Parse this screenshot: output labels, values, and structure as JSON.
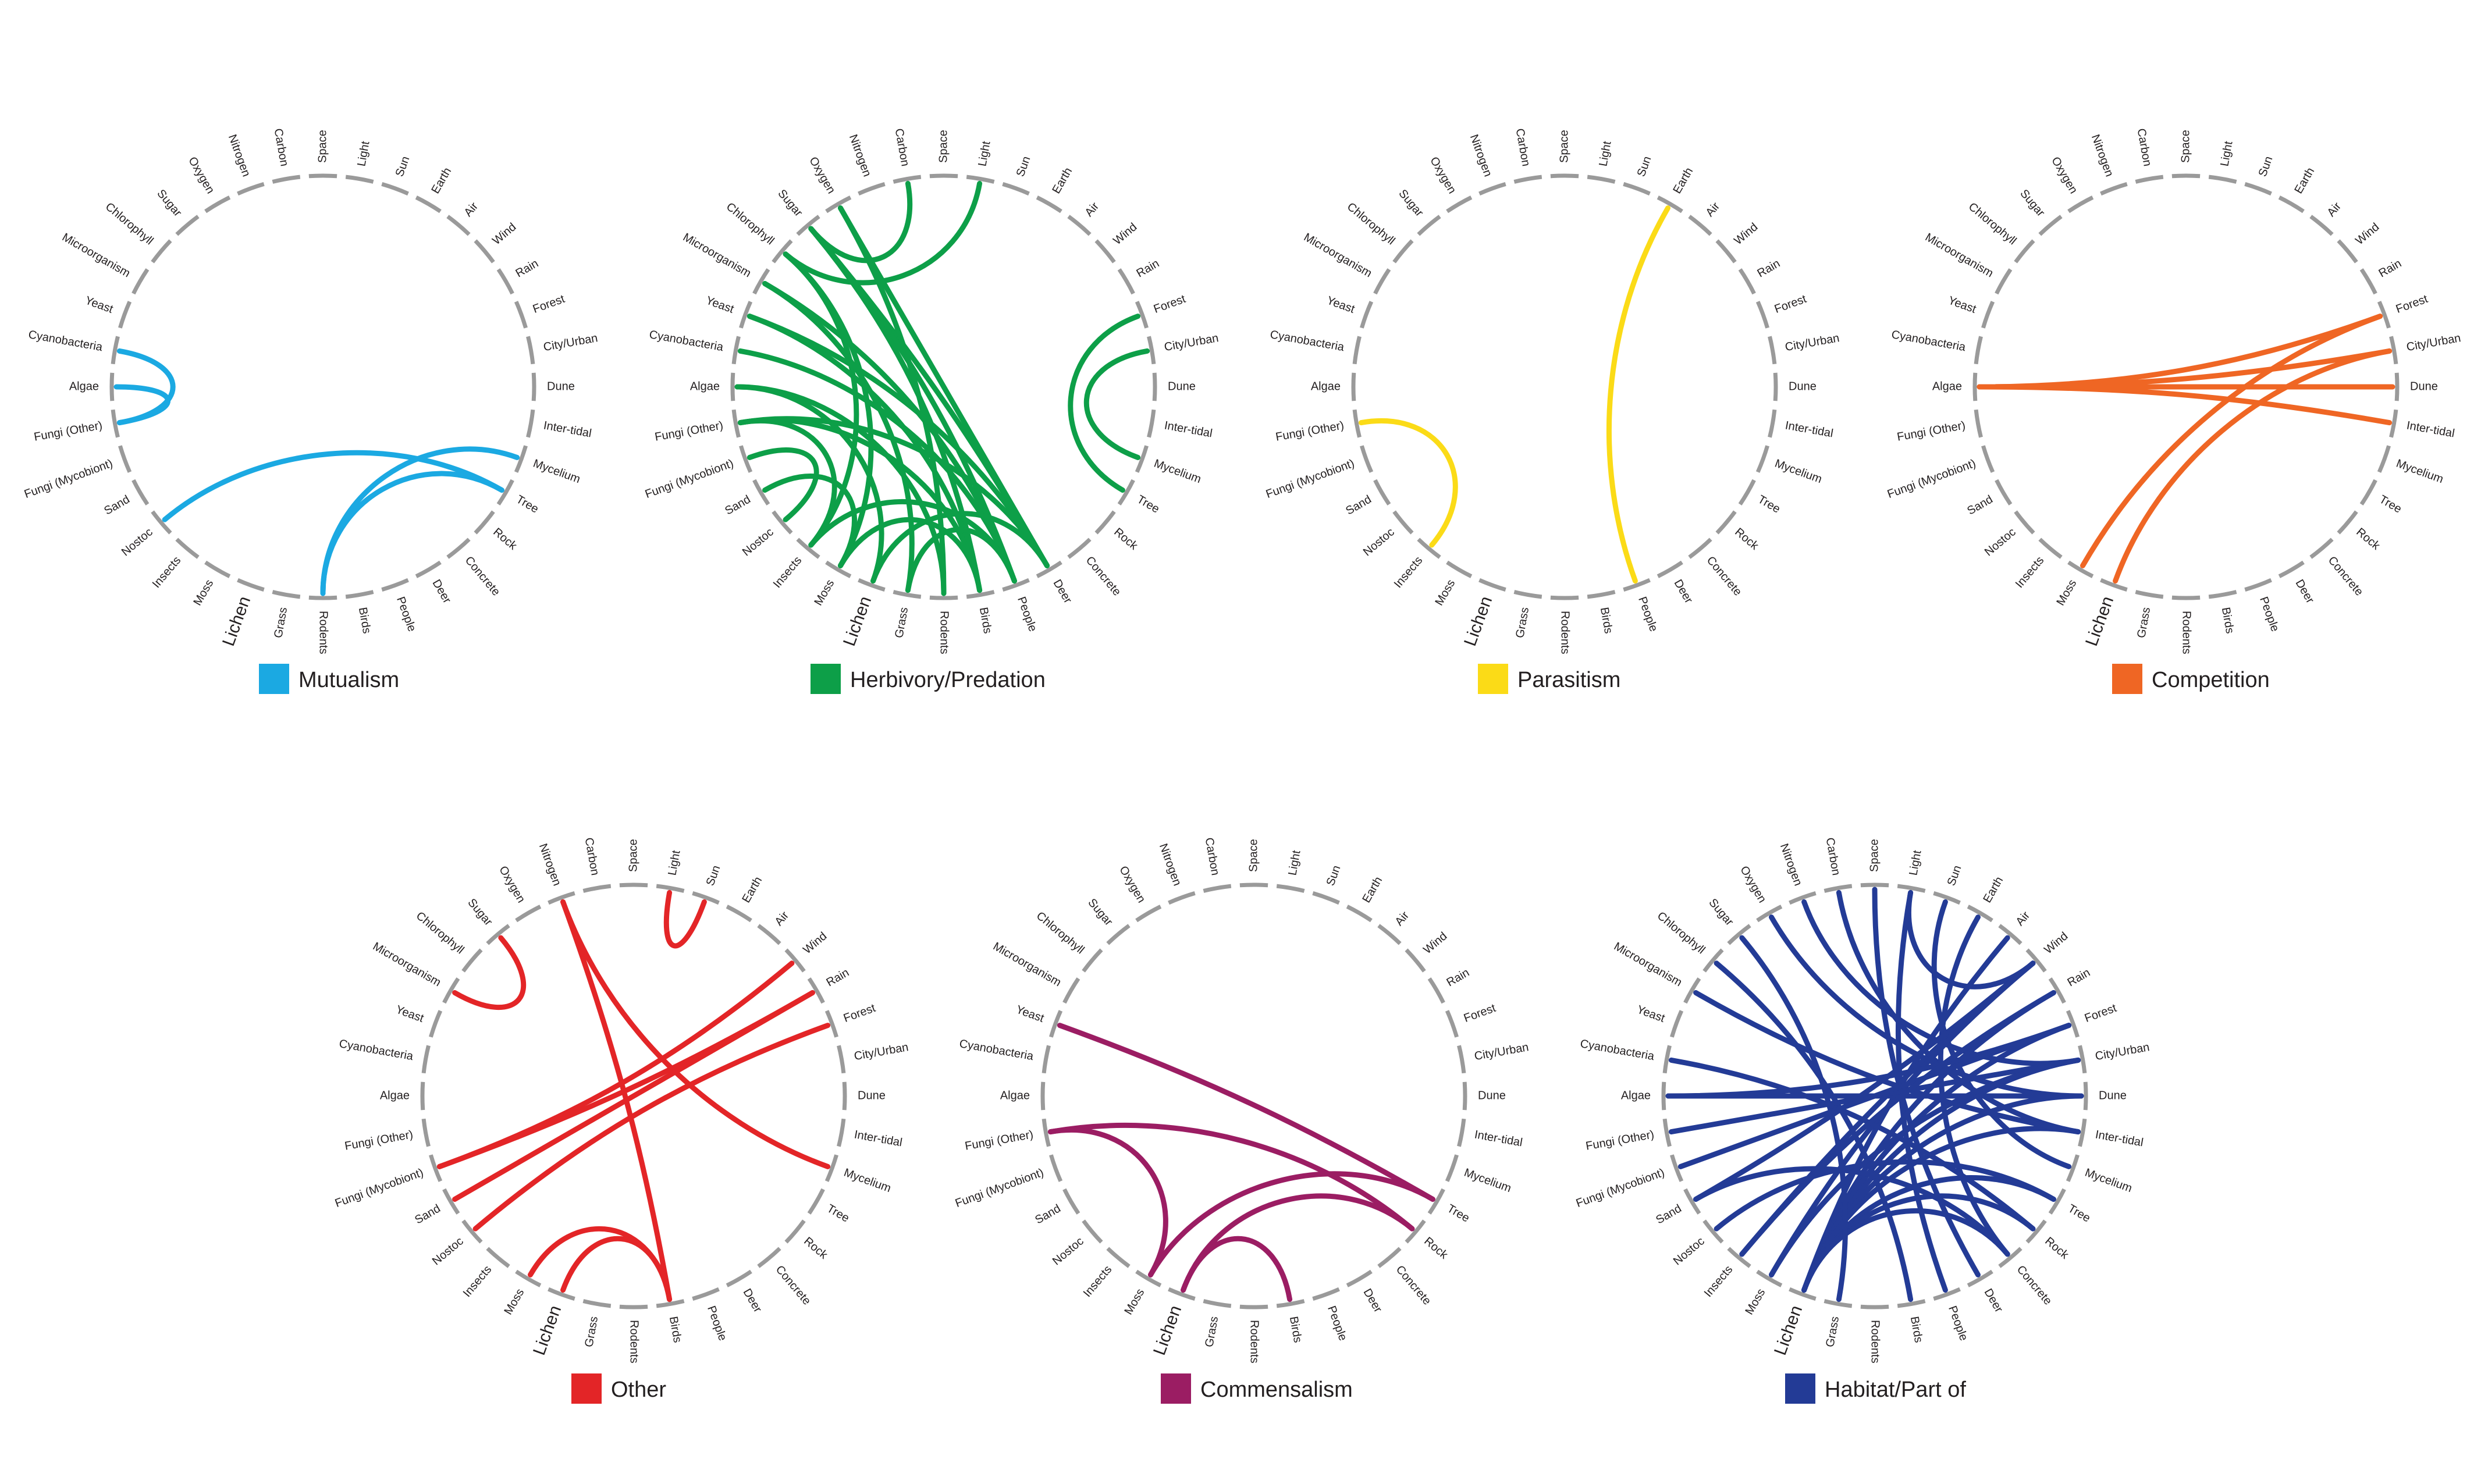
{
  "nodes": [
    "Space",
    "Light",
    "Sun",
    "Earth",
    "Air",
    "Wind",
    "Rain",
    "Forest",
    "City/Urban",
    "Dune",
    "Inter-tidal",
    "Mycelium",
    "Tree",
    "Rock",
    "Concrete",
    "Deer",
    "People",
    "Birds",
    "Rodents",
    "Grass",
    "Lichen",
    "Moss",
    "Insects",
    "Nostoc",
    "Sand",
    "Fungi (Mycobiont)",
    "Fungi (Other)",
    "Algae",
    "Cyanobacteria",
    "Yeast",
    "Microorganism",
    "Chlorophyll",
    "Sugar",
    "Oxygen",
    "Nitrogen",
    "Carbon"
  ],
  "emphasized_node": "Lichen",
  "diagrams": [
    {
      "legend": "Mutualism",
      "color": "#1ba9e2",
      "links": [
        [
          "Cyanobacteria",
          "Fungi (Other)"
        ],
        [
          "Algae",
          "Fungi (Other)"
        ],
        [
          "Nostoc",
          "Tree"
        ],
        [
          "Rodents",
          "Mycelium"
        ],
        [
          "Rodents",
          "Tree"
        ]
      ]
    },
    {
      "legend": "Herbivory/Predation",
      "color": "#0d9f48",
      "links": [
        [
          "Light",
          "Chlorophyll"
        ],
        [
          "Carbon",
          "Sugar"
        ],
        [
          "Sugar",
          "Deer"
        ],
        [
          "Sugar",
          "People"
        ],
        [
          "Sugar",
          "Birds"
        ],
        [
          "Oxygen",
          "Deer"
        ],
        [
          "Oxygen",
          "Rodents"
        ],
        [
          "Chlorophyll",
          "Insects"
        ],
        [
          "Chlorophyll",
          "Moss"
        ],
        [
          "Microorganism",
          "People"
        ],
        [
          "Microorganism",
          "Grass"
        ],
        [
          "Yeast",
          "Deer"
        ],
        [
          "Yeast",
          "Birds"
        ],
        [
          "Cyanobacteria",
          "People"
        ],
        [
          "Algae",
          "Rodents"
        ],
        [
          "Algae",
          "Lichen"
        ],
        [
          "Fungi (Other)",
          "Birds"
        ],
        [
          "Fungi (Other)",
          "Deer"
        ],
        [
          "Fungi (Other)",
          "Insects"
        ],
        [
          "Fungi (Mycobiont)",
          "Nostoc"
        ],
        [
          "Sand",
          "Moss"
        ],
        [
          "Insects",
          "People"
        ],
        [
          "Moss",
          "Birds"
        ],
        [
          "Lichen",
          "Deer"
        ],
        [
          "Grass",
          "People"
        ],
        [
          "City/Urban",
          "Mycelium"
        ],
        [
          "Forest",
          "Tree"
        ]
      ]
    },
    {
      "legend": "Parasitism",
      "color": "#fbdb17",
      "links": [
        [
          "Fungi (Other)",
          "Insects"
        ],
        [
          "Earth",
          "People"
        ]
      ]
    },
    {
      "legend": "Competition",
      "color": "#ef6624",
      "links": [
        [
          "Algae",
          "Forest"
        ],
        [
          "Algae",
          "City/Urban"
        ],
        [
          "Algae",
          "Dune"
        ],
        [
          "Algae",
          "Inter-tidal"
        ],
        [
          "Moss",
          "Forest"
        ],
        [
          "Lichen",
          "City/Urban"
        ]
      ]
    },
    {
      "legend": "Other",
      "color": "#e32527",
      "links": [
        [
          "Sugar",
          "Microorganism"
        ],
        [
          "Light",
          "Sun"
        ],
        [
          "Nitrogen",
          "Birds"
        ],
        [
          "Nitrogen",
          "Mycelium"
        ],
        [
          "Wind",
          "Fungi (Mycobiont)"
        ],
        [
          "Rain",
          "Fungi (Mycobiont)"
        ],
        [
          "Rain",
          "Sand"
        ],
        [
          "Forest",
          "Nostoc"
        ],
        [
          "Birds",
          "Moss"
        ],
        [
          "Birds",
          "Lichen"
        ]
      ]
    },
    {
      "legend": "Commensalism",
      "color": "#9b1d63",
      "links": [
        [
          "Yeast",
          "Tree"
        ],
        [
          "Fungi (Other)",
          "Rock"
        ],
        [
          "Fungi (Other)",
          "Moss"
        ],
        [
          "Moss",
          "Tree"
        ],
        [
          "Lichen",
          "Rock"
        ],
        [
          "Lichen",
          "Birds"
        ]
      ]
    },
    {
      "legend": "Habitat/Part of",
      "color": "#233b96",
      "links": [
        [
          "Carbon",
          "Inter-tidal"
        ],
        [
          "Nitrogen",
          "City/Urban"
        ],
        [
          "Light",
          "Wind"
        ],
        [
          "Sun",
          "Mycelium"
        ],
        [
          "Earth",
          "Concrete"
        ],
        [
          "Space",
          "Deer"
        ],
        [
          "Light",
          "People"
        ],
        [
          "Air",
          "Lichen"
        ],
        [
          "Wind",
          "Insects"
        ],
        [
          "Wind",
          "Sand"
        ],
        [
          "Wind",
          "Moss"
        ],
        [
          "Rain",
          "Lichen"
        ],
        [
          "Forest",
          "Lichen"
        ],
        [
          "City/Urban",
          "Lichen"
        ],
        [
          "Dune",
          "Lichen"
        ],
        [
          "Inter-tidal",
          "Lichen"
        ],
        [
          "Tree",
          "Lichen"
        ],
        [
          "Rock",
          "Lichen"
        ],
        [
          "Concrete",
          "Lichen"
        ],
        [
          "Sugar",
          "Grass"
        ],
        [
          "Oxygen",
          "Dune"
        ],
        [
          "Chlorophyll",
          "Birds"
        ],
        [
          "Microorganism",
          "Inter-tidal"
        ],
        [
          "Cyanobacteria",
          "Rock"
        ],
        [
          "Algae",
          "Dune"
        ],
        [
          "Algae",
          "Forest"
        ],
        [
          "Fungi (Other)",
          "City/Urban"
        ],
        [
          "Fungi (Mycobiont)",
          "Forest"
        ],
        [
          "Sand",
          "Concrete"
        ],
        [
          "Nostoc",
          "Tree"
        ],
        [
          "Insects",
          "Rain"
        ],
        [
          "Moss",
          "City/Urban"
        ]
      ]
    }
  ]
}
